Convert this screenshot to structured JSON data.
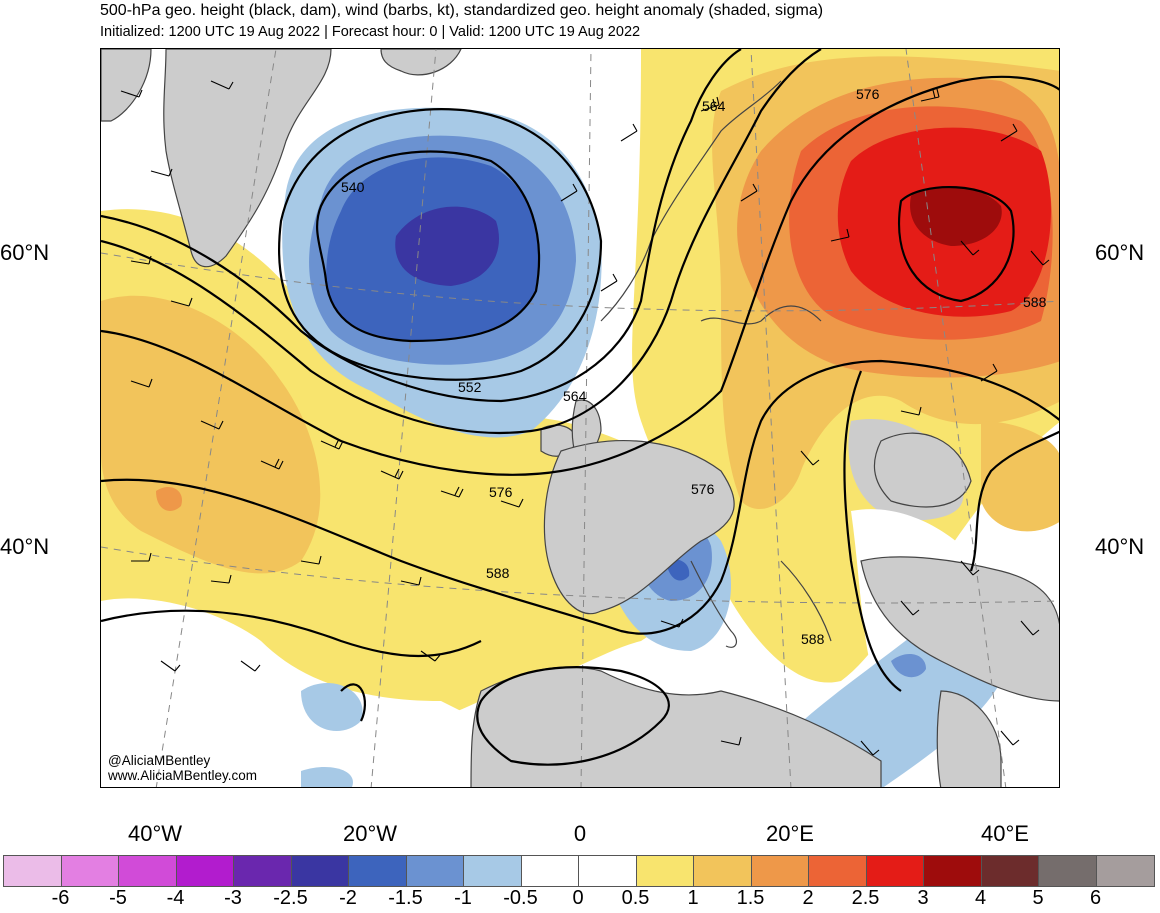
{
  "header": {
    "title": "500-hPa geo. height (black, dam), wind (barbs, kt), standardized geo. height anomaly (shaded, sigma)",
    "subtitle": "Initialized: 1200 UTC 19 Aug 2022 | Forecast hour: 0 | Valid: 1200 UTC 19 Aug 2022"
  },
  "map": {
    "lat_labels": [
      "60°N",
      "40°N"
    ],
    "lon_labels": [
      "40°W",
      "20°W",
      "0",
      "20°E",
      "40°E"
    ],
    "contour_labels": [
      "540",
      "552",
      "564",
      "564",
      "576",
      "576",
      "576",
      "588",
      "588",
      "588"
    ],
    "credit_handle": "@AliciaMBentley",
    "credit_url": "www.AliciaMBentley.com"
  },
  "colorbar": {
    "labels": [
      "-6",
      "-5",
      "-4",
      "-3",
      "-2.5",
      "-2",
      "-1.5",
      "-1",
      "-0.5",
      "0",
      "0.5",
      "1",
      "1.5",
      "2",
      "2.5",
      "3",
      "4",
      "5",
      "6"
    ],
    "colors": [
      "#ebbce8",
      "#e37fe2",
      "#d14bd8",
      "#b21cce",
      "#6a27ae",
      "#3a36a2",
      "#3d64bd",
      "#6b92d1",
      "#a7c9e6",
      "#ffffff",
      "#ffffff",
      "#f8e46e",
      "#f2c45b",
      "#ee9849",
      "#ec6436",
      "#e41c17",
      "#9e0c0c",
      "#6c2c2c",
      "#756d6c",
      "#a59d9d"
    ]
  },
  "colors": {
    "land": "#cccccc",
    "coast": "#444444"
  }
}
